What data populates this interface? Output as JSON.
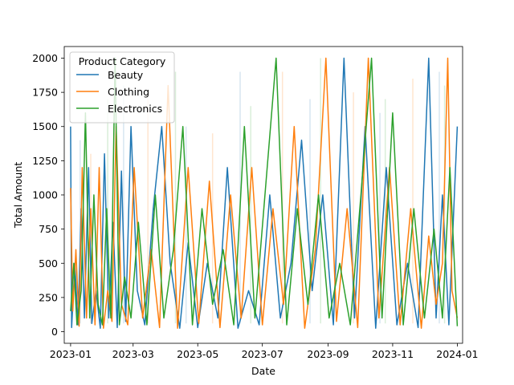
{
  "chart_data": {
    "type": "line",
    "xlabel": "Date",
    "ylabel": "Total Amount",
    "x_range": [
      "2022-12-26",
      "2024-01-06"
    ],
    "ylim": [
      -85,
      2085
    ],
    "x_ticks": [
      "2023-01",
      "2023-03",
      "2023-05",
      "2023-07",
      "2023-09",
      "2023-11",
      "2024-01"
    ],
    "y_ticks": [
      "0",
      "250",
      "500",
      "750",
      "1000",
      "1250",
      "1500",
      "1750",
      "2000"
    ],
    "grid": false,
    "legend": {
      "title": "Product Category",
      "placement": "upper-left",
      "entries": [
        "Beauty",
        "Clothing",
        "Electronics"
      ]
    },
    "colors": {
      "Beauty": "#1f77b4",
      "Clothing": "#ff7f0e",
      "Electronics": "#2ca02c"
    },
    "series": [
      {
        "name": "Beauty",
        "color": "#1f77b4",
        "points": [
          [
            "2023-01-01",
            1500
          ],
          [
            "2023-01-02",
            30
          ],
          [
            "2023-01-05",
            500
          ],
          [
            "2023-01-08",
            50
          ],
          [
            "2023-01-11",
            900
          ],
          [
            "2023-01-14",
            100
          ],
          [
            "2023-01-18",
            1200
          ],
          [
            "2023-01-21",
            60
          ],
          [
            "2023-01-25",
            300
          ],
          [
            "2023-01-29",
            25
          ],
          [
            "2023-02-02",
            1300
          ],
          [
            "2023-02-06",
            100
          ],
          [
            "2023-02-10",
            800
          ],
          [
            "2023-02-14",
            30
          ],
          [
            "2023-02-18",
            1175
          ],
          [
            "2023-02-22",
            75
          ],
          [
            "2023-02-27",
            1500
          ],
          [
            "2023-03-05",
            300
          ],
          [
            "2023-03-12",
            50
          ],
          [
            "2023-03-20",
            900
          ],
          [
            "2023-03-28",
            1500
          ],
          [
            "2023-04-05",
            500
          ],
          [
            "2023-04-14",
            25
          ],
          [
            "2023-04-22",
            650
          ],
          [
            "2023-05-01",
            30
          ],
          [
            "2023-05-10",
            500
          ],
          [
            "2023-05-20",
            100
          ],
          [
            "2023-05-29",
            1200
          ],
          [
            "2023-06-08",
            25
          ],
          [
            "2023-06-18",
            300
          ],
          [
            "2023-06-28",
            50
          ],
          [
            "2023-07-08",
            1000
          ],
          [
            "2023-07-18",
            100
          ],
          [
            "2023-07-28",
            500
          ],
          [
            "2023-08-07",
            1400
          ],
          [
            "2023-08-17",
            300
          ],
          [
            "2023-08-27",
            1000
          ],
          [
            "2023-09-06",
            50
          ],
          [
            "2023-09-16",
            2000
          ],
          [
            "2023-09-26",
            100
          ],
          [
            "2023-10-06",
            1500
          ],
          [
            "2023-10-16",
            25
          ],
          [
            "2023-10-26",
            1200
          ],
          [
            "2023-11-05",
            50
          ],
          [
            "2023-11-15",
            500
          ],
          [
            "2023-11-25",
            30
          ],
          [
            "2023-12-05",
            2000
          ],
          [
            "2023-12-12",
            100
          ],
          [
            "2023-12-18",
            1000
          ],
          [
            "2023-12-24",
            50
          ],
          [
            "2024-01-01",
            1500
          ]
        ]
      },
      {
        "name": "Clothing",
        "color": "#ff7f0e",
        "points": [
          [
            "2023-01-01",
            1050
          ],
          [
            "2023-01-03",
            150
          ],
          [
            "2023-01-06",
            600
          ],
          [
            "2023-01-09",
            40
          ],
          [
            "2023-01-12",
            1200
          ],
          [
            "2023-01-16",
            100
          ],
          [
            "2023-01-20",
            900
          ],
          [
            "2023-01-24",
            50
          ],
          [
            "2023-01-28",
            1200
          ],
          [
            "2023-02-01",
            25
          ],
          [
            "2023-02-05",
            300
          ],
          [
            "2023-02-09",
            75
          ],
          [
            "2023-02-13",
            1500
          ],
          [
            "2023-02-18",
            200
          ],
          [
            "2023-02-24",
            50
          ],
          [
            "2023-03-02",
            1200
          ],
          [
            "2023-03-10",
            100
          ],
          [
            "2023-03-18",
            600
          ],
          [
            "2023-03-26",
            30
          ],
          [
            "2023-04-03",
            1800
          ],
          [
            "2023-04-12",
            25
          ],
          [
            "2023-04-22",
            1200
          ],
          [
            "2023-05-02",
            60
          ],
          [
            "2023-05-12",
            1100
          ],
          [
            "2023-05-22",
            30
          ],
          [
            "2023-06-01",
            1000
          ],
          [
            "2023-06-11",
            100
          ],
          [
            "2023-06-21",
            1200
          ],
          [
            "2023-07-01",
            50
          ],
          [
            "2023-07-11",
            900
          ],
          [
            "2023-07-21",
            200
          ],
          [
            "2023-07-31",
            1500
          ],
          [
            "2023-08-10",
            25
          ],
          [
            "2023-08-20",
            600
          ],
          [
            "2023-08-30",
            2000
          ],
          [
            "2023-09-09",
            75
          ],
          [
            "2023-09-19",
            900
          ],
          [
            "2023-09-29",
            30
          ],
          [
            "2023-10-09",
            2000
          ],
          [
            "2023-10-19",
            100
          ],
          [
            "2023-10-29",
            1200
          ],
          [
            "2023-11-08",
            50
          ],
          [
            "2023-11-18",
            900
          ],
          [
            "2023-11-28",
            25
          ],
          [
            "2023-12-05",
            700
          ],
          [
            "2023-12-12",
            200
          ],
          [
            "2023-12-18",
            500
          ],
          [
            "2023-12-23",
            2000
          ],
          [
            "2023-12-27",
            300
          ],
          [
            "2024-01-01",
            100
          ]
        ]
      },
      {
        "name": "Electronics",
        "color": "#2ca02c",
        "points": [
          [
            "2023-01-01",
            150
          ],
          [
            "2023-01-04",
            500
          ],
          [
            "2023-01-07",
            50
          ],
          [
            "2023-01-11",
            300
          ],
          [
            "2023-01-15",
            1600
          ],
          [
            "2023-01-19",
            100
          ],
          [
            "2023-01-23",
            1000
          ],
          [
            "2023-01-27",
            200
          ],
          [
            "2023-01-31",
            50
          ],
          [
            "2023-02-04",
            900
          ],
          [
            "2023-02-08",
            100
          ],
          [
            "2023-02-12",
            2000
          ],
          [
            "2023-02-16",
            50
          ],
          [
            "2023-02-21",
            400
          ],
          [
            "2023-02-27",
            100
          ],
          [
            "2023-03-06",
            800
          ],
          [
            "2023-03-14",
            50
          ],
          [
            "2023-03-22",
            1000
          ],
          [
            "2023-03-30",
            100
          ],
          [
            "2023-04-08",
            600
          ],
          [
            "2023-04-17",
            1500
          ],
          [
            "2023-04-26",
            50
          ],
          [
            "2023-05-05",
            900
          ],
          [
            "2023-05-15",
            200
          ],
          [
            "2023-05-25",
            600
          ],
          [
            "2023-06-04",
            50
          ],
          [
            "2023-06-14",
            1500
          ],
          [
            "2023-06-24",
            100
          ],
          [
            "2023-07-04",
            1050
          ],
          [
            "2023-07-14",
            2000
          ],
          [
            "2023-07-24",
            50
          ],
          [
            "2023-08-03",
            900
          ],
          [
            "2023-08-13",
            200
          ],
          [
            "2023-08-23",
            1000
          ],
          [
            "2023-09-02",
            100
          ],
          [
            "2023-09-12",
            500
          ],
          [
            "2023-09-22",
            50
          ],
          [
            "2023-10-02",
            1000
          ],
          [
            "2023-10-12",
            2000
          ],
          [
            "2023-10-22",
            100
          ],
          [
            "2023-11-01",
            1600
          ],
          [
            "2023-11-11",
            50
          ],
          [
            "2023-11-21",
            900
          ],
          [
            "2023-12-01",
            100
          ],
          [
            "2023-12-10",
            750
          ],
          [
            "2023-12-18",
            100
          ],
          [
            "2023-12-25",
            1200
          ],
          [
            "2024-01-01",
            40
          ]
        ]
      }
    ],
    "faint_series": [
      {
        "name": "Beauty",
        "color": "#1f77b4",
        "opacity": 0.18,
        "points": [
          [
            "2023-01-10",
            1400
          ],
          [
            "2023-02-20",
            1800
          ],
          [
            "2023-04-20",
            1500
          ],
          [
            "2023-06-10",
            1900
          ],
          [
            "2023-08-15",
            1700
          ],
          [
            "2023-10-20",
            1600
          ],
          [
            "2023-12-15",
            1900
          ]
        ]
      },
      {
        "name": "Clothing",
        "color": "#ff7f0e",
        "opacity": 0.2,
        "points": [
          [
            "2023-01-20",
            1300
          ],
          [
            "2023-03-15",
            1700
          ],
          [
            "2023-05-15",
            1450
          ],
          [
            "2023-07-20",
            1900
          ],
          [
            "2023-09-25",
            1750
          ],
          [
            "2023-11-20",
            1850
          ]
        ]
      },
      {
        "name": "Electronics",
        "color": "#2ca02c",
        "opacity": 0.18,
        "points": [
          [
            "2023-02-05",
            1700
          ],
          [
            "2023-04-10",
            1900
          ],
          [
            "2023-06-20",
            1650
          ],
          [
            "2023-08-25",
            2000
          ],
          [
            "2023-10-25",
            1700
          ],
          [
            "2023-12-20",
            1800
          ]
        ]
      }
    ]
  }
}
